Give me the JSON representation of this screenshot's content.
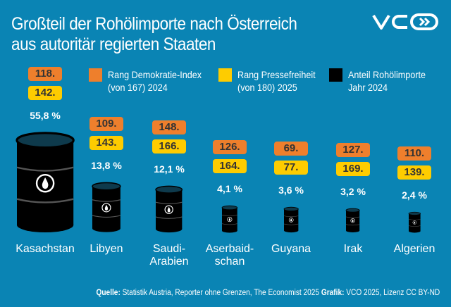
{
  "title_line1": "Großteil der Rohölimporte nach Österreich",
  "title_line2": "aus autoritär regierten Staaten",
  "logo_text": "VCÖ",
  "colors": {
    "background": "#0a84b4",
    "democracy": "#ee7f2c",
    "press": "#fecc00",
    "oil": "#000000"
  },
  "legend": [
    {
      "line1": "Rang Demokratie-Index",
      "line2": "(von 167) 2024",
      "color": "#ee7f2c"
    },
    {
      "line1": "Rang Pressefreiheit",
      "line2": "(von 180) 2025",
      "color": "#fecc00"
    },
    {
      "line1": "Anteil Rohölimporte",
      "line2": "Jahr 2024",
      "color": "#000000"
    }
  ],
  "chart_data": {
    "type": "bar",
    "categories": [
      "Kasachstan",
      "Libyen",
      "Saudi-Arabien",
      "Aserbaidschan",
      "Guyana",
      "Irak",
      "Algerien"
    ],
    "category_labels": [
      [
        "Kasachstan"
      ],
      [
        "Libyen"
      ],
      [
        "Saudi-",
        "Arabien"
      ],
      [
        "Aserbaid-",
        "schan"
      ],
      [
        "Guyana"
      ],
      [
        "Irak"
      ],
      [
        "Algerien"
      ]
    ],
    "series": [
      {
        "name": "Anteil Rohölimporte Jahr 2024",
        "unit": "%",
        "values": [
          55.8,
          13.8,
          12.1,
          4.1,
          3.6,
          3.2,
          2.4
        ],
        "labels": [
          "55,8 %",
          "13,8 %",
          "12,1 %",
          "4,1 %",
          "3,6 %",
          "3,2 %",
          "2,4 %"
        ]
      },
      {
        "name": "Rang Demokratie-Index (von 167) 2024",
        "values": [
          118,
          109,
          148,
          126,
          69,
          127,
          110
        ],
        "labels": [
          "118.",
          "109.",
          "148.",
          "126.",
          "69.",
          "127.",
          "110."
        ]
      },
      {
        "name": "Rang Pressefreiheit (von 180) 2025",
        "values": [
          142,
          143,
          166,
          164,
          77,
          169,
          139
        ],
        "labels": [
          "142.",
          "143.",
          "166.",
          "164.",
          "77.",
          "169.",
          "139."
        ]
      }
    ]
  },
  "footer": {
    "source_label": "Quelle:",
    "source_text": " Statistik Austria, Reporter ohne Grenzen, The Economist 2025 ",
    "graphic_label": "Grafik:",
    "graphic_text": " VCÖ 2025, Lizenz CC BY-ND"
  }
}
